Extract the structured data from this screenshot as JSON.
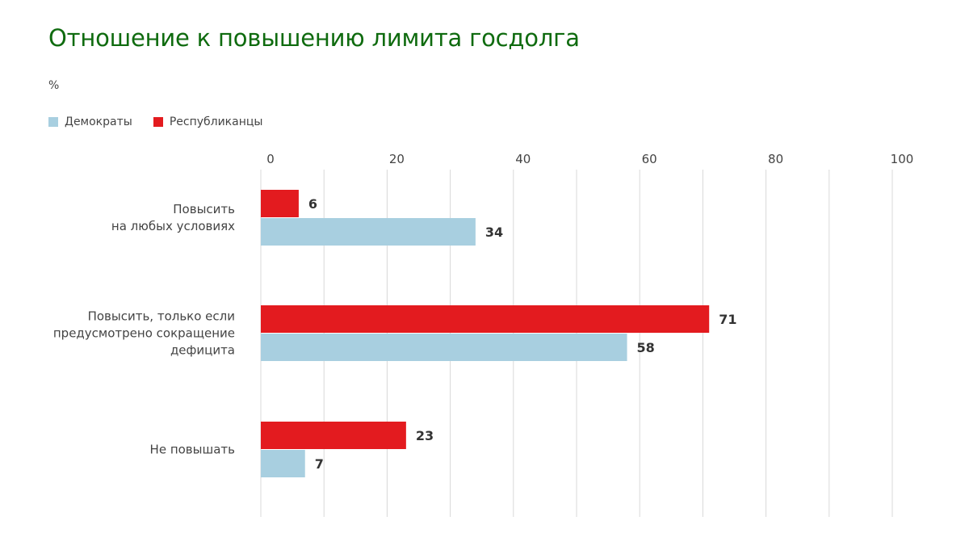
{
  "title": "Отношение к повышению лимита госдолга",
  "unit": "%",
  "colors": {
    "title": "#0f6b0f",
    "democrats": "#a8cfe0",
    "republicans": "#e31b1f",
    "grid": "#d9d9d9"
  },
  "legend": [
    {
      "label": "Демократы",
      "color": "#a8cfe0"
    },
    {
      "label": "Республиканцы",
      "color": "#e31b1f"
    }
  ],
  "chart_data": {
    "type": "bar",
    "orientation": "horizontal",
    "title": "Отношение к повышению лимита госдолга",
    "unit": "%",
    "categories": [
      [
        "Повысить",
        "на любых условиях"
      ],
      [
        "Повысить, только если",
        "предусмотрено сокращение",
        "дефицита"
      ],
      [
        "Не повышать"
      ]
    ],
    "series": [
      {
        "name": "Республиканцы",
        "color": "#e31b1f",
        "values": [
          6,
          71,
          23
        ]
      },
      {
        "name": "Демократы",
        "color": "#a8cfe0",
        "values": [
          34,
          58,
          7
        ]
      }
    ],
    "xlim": [
      0,
      100
    ],
    "ticks": [
      "0",
      "20",
      "40",
      "60",
      "80",
      "100"
    ],
    "grid": true,
    "legend_position": "top-left"
  }
}
